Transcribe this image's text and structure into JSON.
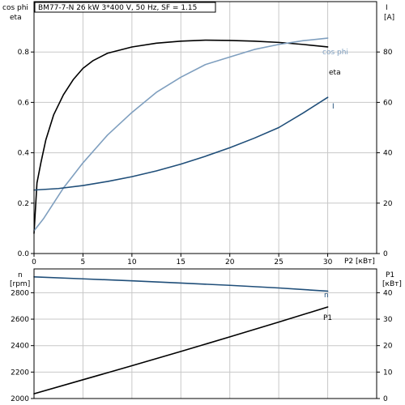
{
  "chart_data": [
    {
      "type": "line",
      "title": "BM77-7-N   26 kW   3*400 V, 50 Hz, SF = 1.15",
      "xlabel": "P2 [кВт]",
      "ylabel_left_top": "cos phi",
      "ylabel_left_bottom": "eta",
      "ylabel_right_top": "I",
      "ylabel_right_bottom": "[A]",
      "xlim": [
        0,
        35
      ],
      "ylim_left": [
        0,
        1.0
      ],
      "ylim_right": [
        0,
        100
      ],
      "x_ticks": [
        0,
        5,
        10,
        15,
        20,
        25,
        30
      ],
      "x_tick_labels": [
        "0",
        "5",
        "10",
        "15",
        "20",
        "25",
        "30"
      ],
      "y_left_ticks": [
        0,
        0.2,
        0.4,
        0.6,
        0.8
      ],
      "y_left_tick_labels": [
        "0.0",
        "0.2",
        "0.4",
        "0.6",
        "0.8"
      ],
      "y_right_ticks": [
        0,
        20,
        40,
        60,
        80
      ],
      "y_right_tick_labels": [
        "0",
        "20",
        "40",
        "60",
        "80"
      ],
      "grid": true,
      "series": [
        {
          "name": "eta",
          "axis": "left",
          "color": "#000000",
          "x": [
            0,
            0.3,
            0.7,
            1.2,
            2,
            3,
            4,
            5,
            6,
            7.5,
            10,
            12.5,
            15,
            17.5,
            20,
            22.5,
            25,
            27.5,
            30
          ],
          "y": [
            0.08,
            0.28,
            0.36,
            0.45,
            0.55,
            0.63,
            0.69,
            0.735,
            0.765,
            0.795,
            0.82,
            0.835,
            0.843,
            0.847,
            0.846,
            0.843,
            0.838,
            0.83,
            0.82
          ]
        },
        {
          "name": "cos phi",
          "axis": "left",
          "color": "#7f9fbf",
          "x": [
            0,
            1,
            2,
            3,
            4,
            5,
            7.5,
            10,
            12.5,
            15,
            17.5,
            20,
            22.5,
            25,
            27.5,
            30
          ],
          "y": [
            0.09,
            0.14,
            0.2,
            0.26,
            0.31,
            0.36,
            0.47,
            0.56,
            0.64,
            0.7,
            0.75,
            0.78,
            0.81,
            0.83,
            0.845,
            0.855
          ]
        },
        {
          "name": "I",
          "axis": "right",
          "color": "#1f4e79",
          "x": [
            0,
            2.5,
            5,
            7.5,
            10,
            12.5,
            15,
            17.5,
            20,
            22.5,
            25,
            27.5,
            30
          ],
          "y": [
            25.2,
            25.8,
            27,
            28.6,
            30.5,
            32.8,
            35.5,
            38.6,
            42,
            45.8,
            50,
            55.8,
            62
          ]
        }
      ]
    },
    {
      "type": "line",
      "xlabel": "",
      "ylabel_left_top": "n",
      "ylabel_left_bottom": "[rpm]",
      "ylabel_right_top": "P1",
      "ylabel_right_bottom": "[кВт]",
      "xlim": [
        0,
        35
      ],
      "ylim_left": [
        2000,
        2980
      ],
      "ylim_right": [
        0,
        49
      ],
      "y_left_ticks": [
        2000,
        2200,
        2400,
        2600,
        2800
      ],
      "y_left_tick_labels": [
        "2000",
        "2200",
        "2400",
        "2600",
        "2800"
      ],
      "y_right_ticks": [
        0,
        10,
        20,
        30,
        40
      ],
      "y_right_tick_labels": [
        "0",
        "10",
        "20",
        "30",
        "40"
      ],
      "grid": true,
      "series": [
        {
          "name": "n",
          "axis": "left",
          "color": "#1f4e79",
          "x": [
            0,
            5,
            10,
            15,
            20,
            25,
            30
          ],
          "y": [
            2920,
            2905,
            2890,
            2873,
            2856,
            2836,
            2812
          ]
        },
        {
          "name": "P1",
          "axis": "right",
          "color": "#000000",
          "x": [
            0,
            5,
            10,
            15,
            20,
            25,
            30
          ],
          "y": [
            1.8,
            7.1,
            12.4,
            17.8,
            23.3,
            28.9,
            34.6
          ]
        }
      ]
    }
  ]
}
